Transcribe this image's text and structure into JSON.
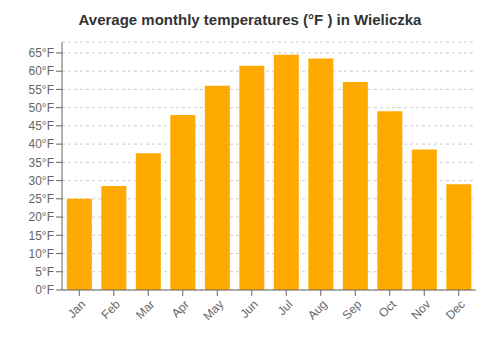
{
  "chart_data": {
    "type": "bar",
    "title": "Average monthly temperatures (°F ) in Wieliczka",
    "categories": [
      "Jan",
      "Feb",
      "Mar",
      "Apr",
      "May",
      "Jun",
      "Jul",
      "Aug",
      "Sep",
      "Oct",
      "Nov",
      "Dec"
    ],
    "values": [
      25,
      28.5,
      37.5,
      48,
      56,
      61.5,
      64.5,
      63.5,
      57,
      49,
      38.5,
      29
    ],
    "color": "#FFAA00",
    "ylim": [
      0,
      68
    ],
    "yticks": [
      {
        "value": 0,
        "label": "0°F"
      },
      {
        "value": 5,
        "label": "5°F"
      },
      {
        "value": 10,
        "label": "10°F"
      },
      {
        "value": 15,
        "label": "15°F"
      },
      {
        "value": 20,
        "label": "20°F"
      },
      {
        "value": 25,
        "label": "25°F"
      },
      {
        "value": 30,
        "label": "30°F"
      },
      {
        "value": 35,
        "label": "35°F"
      },
      {
        "value": 40,
        "label": "40°F"
      },
      {
        "value": 45,
        "label": "45°F"
      },
      {
        "value": 50,
        "label": "50°F"
      },
      {
        "value": 55,
        "label": "55°F"
      },
      {
        "value": 60,
        "label": "60°F"
      },
      {
        "value": 65,
        "label": "65°F"
      }
    ],
    "grid": true
  }
}
